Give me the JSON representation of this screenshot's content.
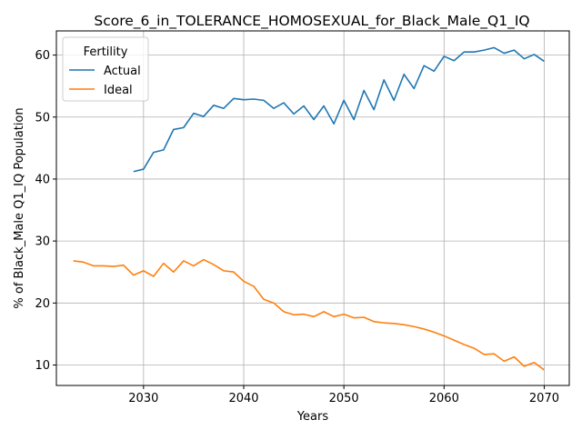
{
  "chart_data": {
    "type": "line",
    "title": "Score_6_in_TOLERANCE_HOMOSEXUAL_for_Black_Male_Q1_IQ",
    "xlabel": "Years",
    "ylabel": "% of Black_Male Q1_IQ Population",
    "xlim": [
      2021.3,
      2072.5
    ],
    "ylim": [
      6.7,
      63.9
    ],
    "xticks": [
      2030,
      2040,
      2050,
      2060,
      2070
    ],
    "yticks": [
      10,
      20,
      30,
      40,
      50,
      60
    ],
    "grid": true,
    "legend": {
      "title": "Fertility",
      "placement": "top-left"
    },
    "series": [
      {
        "name": "Actual",
        "color": "#1f77b4",
        "x": [
          2029,
          2030,
          2031,
          2032,
          2033,
          2034,
          2035,
          2036,
          2037,
          2038,
          2039,
          2040,
          2041,
          2042,
          2043,
          2044,
          2045,
          2046,
          2047,
          2048,
          2049,
          2050,
          2051,
          2052,
          2053,
          2054,
          2055,
          2056,
          2057,
          2058,
          2059,
          2060,
          2061,
          2062,
          2063,
          2064,
          2065,
          2066,
          2067,
          2068,
          2069,
          2070
        ],
        "values": [
          41.2,
          41.6,
          44.3,
          44.7,
          48.0,
          48.3,
          50.6,
          50.1,
          51.9,
          51.4,
          53.0,
          52.8,
          52.9,
          52.7,
          51.4,
          52.3,
          50.5,
          51.8,
          49.6,
          51.8,
          48.9,
          52.7,
          49.6,
          54.3,
          51.2,
          56.0,
          52.7,
          56.9,
          54.6,
          58.3,
          57.4,
          59.8,
          59.1,
          60.5,
          60.5,
          60.8,
          61.2,
          60.3,
          60.8,
          59.4,
          60.1,
          59.0
        ]
      },
      {
        "name": "Ideal",
        "color": "#ff7f0e",
        "x": [
          2023,
          2024,
          2025,
          2026,
          2027,
          2028,
          2029,
          2030,
          2031,
          2032,
          2033,
          2034,
          2035,
          2036,
          2037,
          2038,
          2039,
          2040,
          2041,
          2042,
          2043,
          2044,
          2045,
          2046,
          2047,
          2048,
          2049,
          2050,
          2051,
          2052,
          2053,
          2054,
          2055,
          2056,
          2057,
          2058,
          2059,
          2060,
          2061,
          2062,
          2063,
          2064,
          2065,
          2066,
          2067,
          2068,
          2069,
          2070
        ],
        "values": [
          26.8,
          26.6,
          26.0,
          26.0,
          25.9,
          26.1,
          24.5,
          25.2,
          24.3,
          26.4,
          25.0,
          26.8,
          26.0,
          27.0,
          26.2,
          25.2,
          25.0,
          23.5,
          22.7,
          20.6,
          20.0,
          18.6,
          18.1,
          18.2,
          17.8,
          18.6,
          17.8,
          18.2,
          17.6,
          17.7,
          17.0,
          16.8,
          16.7,
          16.5,
          16.2,
          15.8,
          15.3,
          14.7,
          14.0,
          13.3,
          12.7,
          11.7,
          11.8,
          10.6,
          11.3,
          9.8,
          10.4,
          9.2
        ]
      }
    ]
  }
}
